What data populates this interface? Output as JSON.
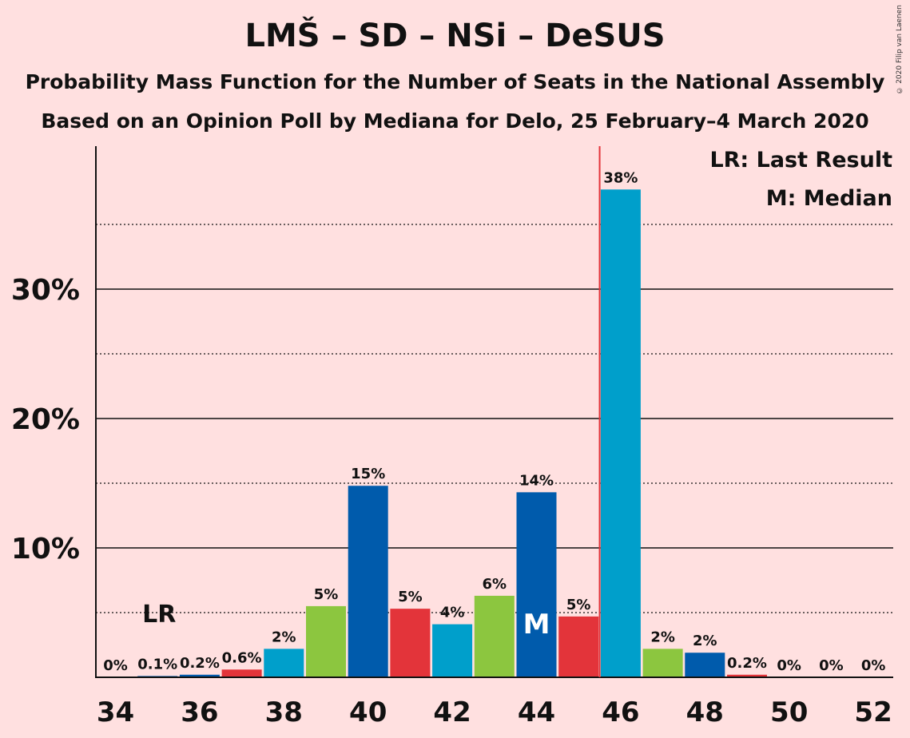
{
  "chart_data": {
    "type": "bar",
    "title": "LMŠ – SD – NSi – DeSUS",
    "subtitle": "Probability Mass Function for the Number of Seats in the National Assembly",
    "subtitle2": "Based on an Opinion Poll by Mediana for Delo, 25 February–4 March 2020",
    "copyright": "© 2020 Filip van Laenen",
    "x": [
      34,
      35,
      36,
      37,
      38,
      39,
      40,
      41,
      42,
      43,
      44,
      45,
      46,
      47,
      48,
      49,
      50,
      51,
      52
    ],
    "values": [
      0,
      0.1,
      0.2,
      0.6,
      2.2,
      5.5,
      14.8,
      5.3,
      4.1,
      6.3,
      14.3,
      4.7,
      37.7,
      2.2,
      1.9,
      0.2,
      0,
      0,
      0
    ],
    "labels": [
      "0%",
      "0.1%",
      "0.2%",
      "0.6%",
      "2%",
      "5%",
      "15%",
      "5%",
      "4%",
      "6%",
      "14%",
      "5%",
      "38%",
      "2%",
      "2%",
      "0.2%",
      "0%",
      "0%",
      "0%"
    ],
    "colors": [
      "#005BAC",
      "#005BAC",
      "#005BAC",
      "#E3343A",
      "#009FCB",
      "#8CC63F",
      "#005BAC",
      "#E3343A",
      "#009FCB",
      "#8CC63F",
      "#005BAC",
      "#E3343A",
      "#009FCB",
      "#8CC63F",
      "#005BAC",
      "#E3343A",
      "#009FCB",
      "#8CC63F",
      "#005BAC"
    ],
    "xticks": [
      34,
      36,
      38,
      40,
      42,
      44,
      46,
      48,
      50,
      52
    ],
    "yticks": [
      10,
      20,
      30
    ],
    "ytick_labels": [
      "10%",
      "20%",
      "30%"
    ],
    "ylim": [
      0,
      41
    ],
    "last_result_seat": 35,
    "last_result_label": "LR",
    "median_seat": 44,
    "median_label": "M",
    "majority_line_x": 45.5,
    "legend": [
      "LR: Last Result",
      "M: Median"
    ],
    "legend_position": "top-right",
    "grid": "solid lines at 10%, 20%, 30%; dotted at 5%, 15%, 25%, 35%"
  }
}
